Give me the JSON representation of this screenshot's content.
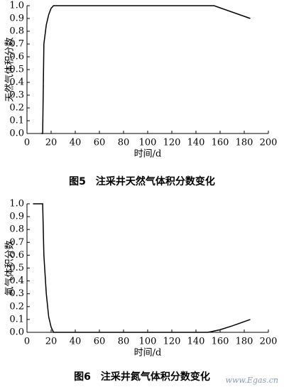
{
  "chart_data": [
    {
      "type": "line",
      "caption": "图5　注采井天然气体积分数变化",
      "xlabel": "时间/d",
      "ylabel": "天然气体积分数",
      "x": [
        12,
        13,
        14,
        16,
        18,
        20,
        22,
        155,
        185
      ],
      "series": [
        {
          "name": "天然气体积分数",
          "color": "#000000",
          "values": [
            0,
            0,
            0.7,
            0.85,
            0.93,
            0.98,
            1.0,
            1.0,
            0.9
          ]
        }
      ],
      "xlim": [
        0,
        200
      ],
      "xticks": [
        0,
        20,
        40,
        60,
        80,
        100,
        120,
        140,
        160,
        180,
        200
      ],
      "ylim": [
        0,
        1
      ],
      "yticks": [
        {
          "value": 0,
          "label": "0.0"
        },
        0.1,
        0.2,
        0.3,
        0.4,
        0.5,
        0.6,
        0.7,
        0.8,
        0.9,
        {
          "value": 1,
          "label": "1.0"
        }
      ],
      "grid": false
    },
    {
      "type": "line",
      "caption": "图6　注采井氮气体积分数变化",
      "xlabel": "时间/d",
      "ylabel": "氮气体积分数",
      "x": [
        5,
        13,
        14,
        16,
        18,
        20,
        22,
        150,
        160,
        170,
        185
      ],
      "series": [
        {
          "name": "氮气体积分数",
          "color": "#000000",
          "values": [
            1.0,
            1.0,
            0.6,
            0.3,
            0.12,
            0.04,
            0,
            0,
            0.02,
            0.05,
            0.1
          ]
        }
      ],
      "xlim": [
        0,
        200
      ],
      "xticks": [
        0,
        20,
        40,
        60,
        80,
        100,
        120,
        140,
        160,
        180,
        200
      ],
      "ylim": [
        0,
        1
      ],
      "yticks": [
        {
          "value": 0,
          "label": "0.0"
        },
        0.1,
        0.2,
        0.3,
        0.4,
        0.5,
        0.6,
        0.7,
        0.8,
        0.9,
        {
          "value": 1,
          "label": "1.0"
        }
      ],
      "grid": false
    }
  ],
  "watermark": "www.Egas.cn"
}
